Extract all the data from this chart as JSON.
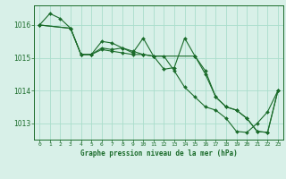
{
  "background_color": "#d8f0e8",
  "grid_color": "#aaddcc",
  "line_color": "#1a6b2a",
  "title": "Graphe pression niveau de la mer (hPa)",
  "xlim": [
    -0.5,
    23.5
  ],
  "ylim": [
    1012.5,
    1016.6
  ],
  "yticks": [
    1013,
    1014,
    1015,
    1016
  ],
  "xtick_labels": [
    "0",
    "1",
    "2",
    "3",
    "4",
    "5",
    "6",
    "7",
    "8",
    "9",
    "10",
    "11",
    "12",
    "13",
    "14",
    "15",
    "16",
    "17",
    "18",
    "19",
    "20",
    "21",
    "22",
    "23"
  ],
  "series": [
    {
      "x": [
        0,
        1,
        2,
        3,
        4,
        5,
        6,
        7,
        8,
        9,
        10,
        11,
        12,
        13,
        14,
        15,
        16,
        17,
        18,
        19,
        20,
        21,
        22,
        23
      ],
      "y": [
        1016.0,
        1016.35,
        1016.2,
        1015.9,
        1015.1,
        1015.1,
        1015.3,
        1015.25,
        1015.3,
        1015.2,
        1015.1,
        1015.05,
        1015.05,
        1014.6,
        1014.1,
        1013.8,
        1013.5,
        1013.4,
        1013.15,
        1012.75,
        1012.72,
        1013.0,
        1013.35,
        1014.0
      ]
    },
    {
      "x": [
        0,
        3,
        4,
        5,
        6,
        7,
        8,
        9,
        10,
        11,
        12,
        13,
        14,
        15,
        16,
        17,
        18,
        19,
        20,
        21,
        22,
        23
      ],
      "y": [
        1016.0,
        1015.9,
        1015.1,
        1015.1,
        1015.5,
        1015.45,
        1015.3,
        1015.15,
        1015.6,
        1015.05,
        1014.65,
        1014.7,
        1015.6,
        1015.05,
        1014.6,
        1013.8,
        1013.5,
        1013.4,
        1013.15,
        1012.75,
        1012.72,
        1014.0
      ]
    },
    {
      "x": [
        0,
        3,
        4,
        5,
        6,
        7,
        8,
        9,
        10,
        11,
        15,
        16,
        17,
        18,
        19,
        20,
        21,
        22,
        23
      ],
      "y": [
        1016.0,
        1015.9,
        1015.1,
        1015.1,
        1015.25,
        1015.2,
        1015.15,
        1015.1,
        1015.1,
        1015.05,
        1015.05,
        1014.5,
        1013.8,
        1013.5,
        1013.4,
        1013.15,
        1012.75,
        1012.72,
        1014.0
      ]
    }
  ]
}
